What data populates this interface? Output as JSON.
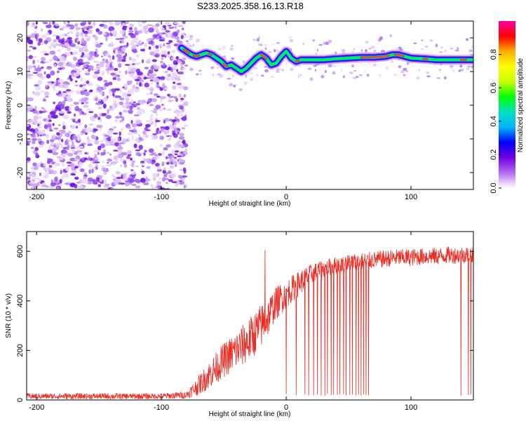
{
  "title": "S233.2025.358.16.13.R18",
  "chart_data": [
    {
      "type": "heatmap",
      "xlabel": "Height of straight line (km)",
      "ylabel": "Frequency (Hz)",
      "xlim": [
        -208,
        150
      ],
      "ylim": [
        -25,
        25
      ],
      "xticks": [
        -200,
        -100,
        0,
        100
      ],
      "yticks": [
        20,
        10,
        0,
        -10,
        -20
      ],
      "noise_region_x": [
        -208,
        -80
      ],
      "signal_ridge": {
        "x": [
          -84,
          -80,
          -76,
          -72,
          -68,
          -64,
          -60,
          -56,
          -52,
          -48,
          -44,
          -40,
          -36,
          -32,
          -28,
          -24,
          -20,
          -16,
          -12,
          -8,
          -4,
          0,
          4,
          8,
          12,
          20,
          30,
          40,
          50,
          60,
          70,
          80,
          85,
          90,
          95,
          100,
          110,
          120,
          130,
          140,
          150
        ],
        "frequency": [
          17,
          16,
          15,
          14.5,
          15,
          15.5,
          15,
          14,
          13,
          11.5,
          12,
          11,
          10,
          11,
          12.5,
          14,
          15,
          14,
          12,
          12.5,
          14.5,
          16,
          14,
          13,
          13.5,
          13.5,
          13.5,
          13.8,
          14,
          14.2,
          14.2,
          14.5,
          15,
          15,
          14.5,
          14,
          13.8,
          13.5,
          13.5,
          13.5,
          13.5
        ]
      },
      "colorbar": {
        "label": "Normalized spectral amplitude",
        "ticks": [
          0.0,
          0.2,
          0.4,
          0.6,
          0.8
        ],
        "range": [
          0,
          1
        ],
        "colors": [
          "#ffffff",
          "#b56cf2",
          "#6e00e0",
          "#0000ff",
          "#00b4ff",
          "#00e0c0",
          "#00ff00",
          "#c8ff00",
          "#ffff00",
          "#ffb000",
          "#ff0000",
          "#ff00a0"
        ]
      }
    },
    {
      "type": "line",
      "xlabel": "Height of straight line (km)",
      "ylabel": "SNR (10 * v/v)",
      "xlim": [
        -208,
        150
      ],
      "ylim": [
        0,
        680
      ],
      "xticks": [
        -200,
        -100,
        0,
        100
      ],
      "yticks": [
        0,
        200,
        400,
        600
      ],
      "color": "#ee2a24",
      "envelope": {
        "x": [
          -208,
          -100,
          -80,
          -70,
          -60,
          -50,
          -40,
          -30,
          -20,
          -15,
          -10,
          0,
          10,
          20,
          30,
          40,
          50,
          60,
          70,
          80,
          90,
          100,
          110,
          120,
          130,
          140,
          150
        ],
        "mean": [
          15,
          15,
          20,
          60,
          110,
          160,
          200,
          240,
          300,
          330,
          380,
          430,
          470,
          510,
          530,
          545,
          555,
          560,
          565,
          570,
          575,
          575,
          580,
          580,
          585,
          585,
          590
        ],
        "spread": [
          12,
          12,
          15,
          40,
          60,
          70,
          80,
          90,
          90,
          80,
          70,
          60,
          50,
          40,
          35,
          35,
          35,
          35,
          35,
          35,
          35,
          35,
          35,
          35,
          35,
          35,
          35
        ]
      },
      "spike_up": {
        "x": -17,
        "y": 605
      },
      "dropouts_x": [
        0,
        8,
        15,
        18,
        22,
        25,
        28,
        31,
        33,
        36,
        38,
        41,
        43,
        46,
        48,
        51,
        53,
        56,
        58,
        60,
        62,
        64,
        66,
        140,
        146,
        148
      ]
    }
  ]
}
